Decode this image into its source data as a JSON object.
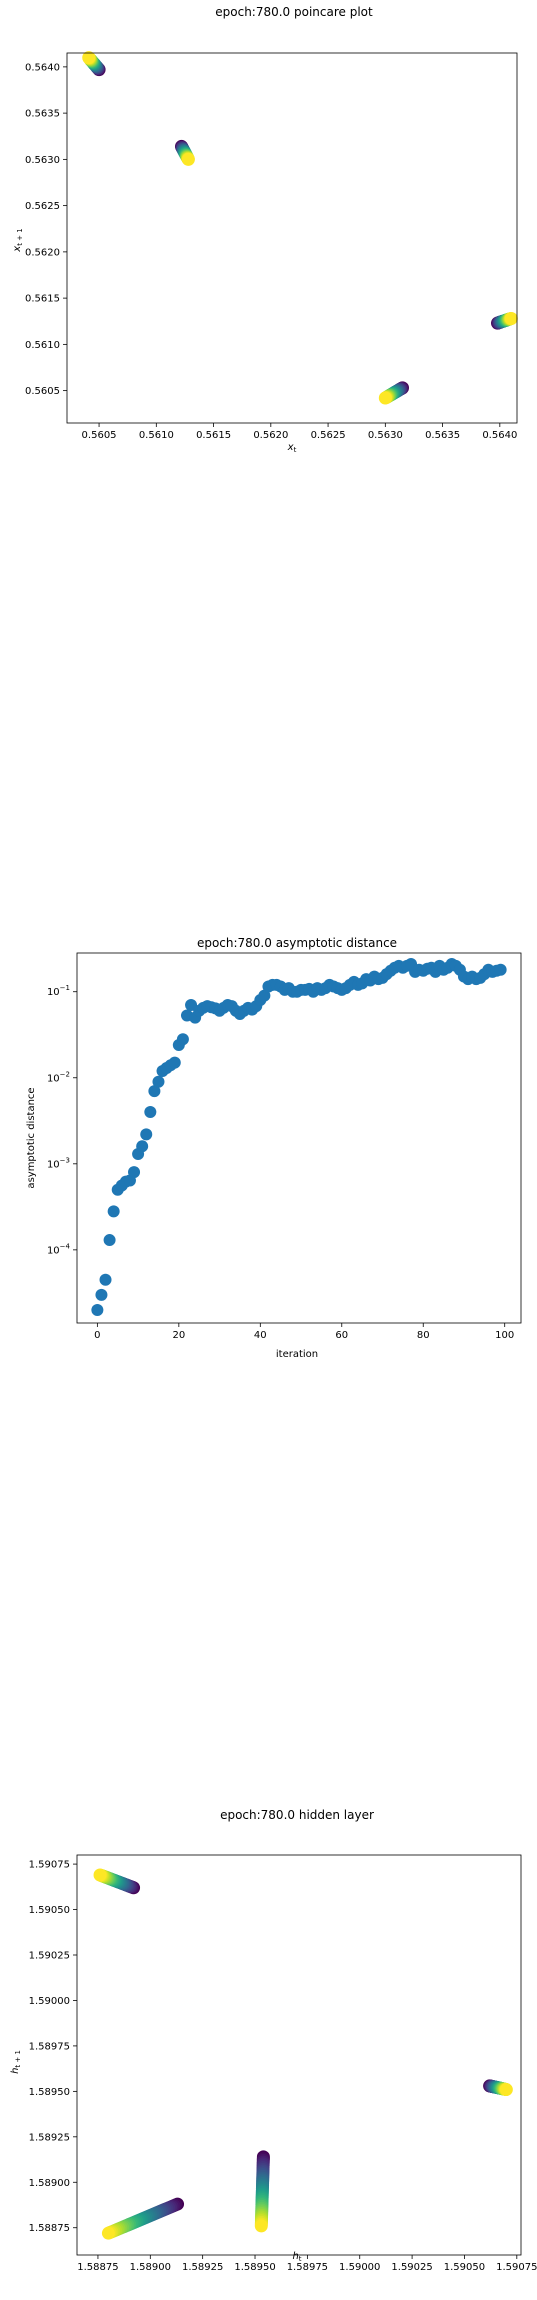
{
  "chart_data": [
    {
      "type": "scatter",
      "title": "epoch:780.0 poincare plot",
      "xlabel": "x_t",
      "ylabel": "x_{t+1}",
      "xlim": [
        0.56022,
        0.56415
      ],
      "ylim": [
        0.56015,
        0.56415
      ],
      "xticks": [
        "0.5605",
        "0.5610",
        "0.5615",
        "0.5620",
        "0.5625",
        "0.5630",
        "0.5635",
        "0.5640"
      ],
      "xtick_values": [
        0.5605,
        0.561,
        0.5615,
        0.562,
        0.5625,
        0.563,
        0.5635,
        0.564
      ],
      "yticks": [
        "0.5605",
        "0.5610",
        "0.5615",
        "0.5620",
        "0.5625",
        "0.5630",
        "0.5635",
        "0.5640"
      ],
      "ytick_values": [
        0.5605,
        0.561,
        0.5615,
        0.562,
        0.5625,
        0.563,
        0.5635,
        0.564
      ],
      "colormap": "viridis",
      "clusters": [
        {
          "start": [
            0.5605,
            0.56397
          ],
          "end": [
            0.56041,
            0.5641
          ]
        },
        {
          "start": [
            0.56122,
            0.56314
          ],
          "end": [
            0.56128,
            0.563
          ]
        },
        {
          "start": [
            0.56315,
            0.56053
          ],
          "end": [
            0.563,
            0.56042
          ]
        },
        {
          "start": [
            0.56398,
            0.56123
          ],
          "end": [
            0.5641,
            0.56128
          ]
        }
      ]
    },
    {
      "type": "scatter",
      "title": "epoch:780.0 asymptotic distance",
      "xlabel": "iteration",
      "ylabel": "asymptotic distance",
      "xlim": [
        -5,
        104
      ],
      "ylim_log10": [
        -4.85,
        -0.55
      ],
      "log_y": true,
      "xticks": [
        "0",
        "20",
        "40",
        "60",
        "80",
        "100"
      ],
      "xtick_values": [
        0,
        20,
        40,
        60,
        80,
        100
      ],
      "yticks": [
        "10",
        "10",
        "10",
        "10"
      ],
      "ytick_exponents": [
        "−4",
        "−3",
        "−2",
        "−1"
      ],
      "ytick_values": [
        -4,
        -3,
        -2,
        -1
      ],
      "color": "#1f77b4",
      "x": [
        0,
        1,
        2,
        3,
        4,
        5,
        6,
        7,
        8,
        9,
        10,
        11,
        12,
        13,
        14,
        15,
        16,
        17,
        18,
        19,
        20,
        21,
        22,
        23,
        24,
        25,
        26,
        27,
        28,
        29,
        30,
        31,
        32,
        33,
        34,
        35,
        36,
        37,
        38,
        39,
        40,
        41,
        42,
        43,
        44,
        45,
        46,
        47,
        48,
        49,
        50,
        51,
        52,
        53,
        54,
        55,
        56,
        57,
        58,
        59,
        60,
        61,
        62,
        63,
        64,
        65,
        66,
        67,
        68,
        69,
        70,
        71,
        72,
        73,
        74,
        75,
        76,
        77,
        78,
        79,
        80,
        81,
        82,
        83,
        84,
        85,
        86,
        87,
        88,
        89,
        90,
        91,
        92,
        93,
        94,
        95,
        96,
        97,
        98,
        99
      ],
      "y": [
        2e-05,
        3e-05,
        4.5e-05,
        0.00013,
        0.00028,
        0.0005,
        0.00056,
        0.00062,
        0.00064,
        0.0008,
        0.0013,
        0.0016,
        0.0022,
        0.004,
        0.007,
        0.009,
        0.012,
        0.013,
        0.014,
        0.015,
        0.024,
        0.028,
        0.053,
        0.07,
        0.05,
        0.06,
        0.065,
        0.068,
        0.066,
        0.064,
        0.06,
        0.065,
        0.07,
        0.068,
        0.06,
        0.055,
        0.06,
        0.065,
        0.062,
        0.068,
        0.08,
        0.09,
        0.115,
        0.12,
        0.12,
        0.115,
        0.105,
        0.11,
        0.1,
        0.1,
        0.105,
        0.105,
        0.108,
        0.1,
        0.11,
        0.105,
        0.11,
        0.12,
        0.115,
        0.11,
        0.105,
        0.11,
        0.12,
        0.13,
        0.12,
        0.125,
        0.14,
        0.135,
        0.15,
        0.14,
        0.145,
        0.16,
        0.175,
        0.19,
        0.2,
        0.19,
        0.2,
        0.21,
        0.17,
        0.18,
        0.175,
        0.185,
        0.19,
        0.17,
        0.2,
        0.18,
        0.19,
        0.21,
        0.2,
        0.18,
        0.15,
        0.14,
        0.15,
        0.14,
        0.145,
        0.16,
        0.18,
        0.17,
        0.175,
        0.18
      ]
    },
    {
      "type": "scatter",
      "title": "epoch:780.0 hidden layer",
      "xlabel": "h_t",
      "ylabel": "h_{t+1}",
      "xlim": [
        1.58865,
        1.59077
      ],
      "ylim": [
        1.5886,
        1.5908
      ],
      "xticks": [
        "1.58875",
        "1.58900",
        "1.58925",
        "1.58950",
        "1.58975",
        "1.59000",
        "1.59025",
        "1.59050",
        "1.59075"
      ],
      "xtick_values": [
        1.58875,
        1.589,
        1.58925,
        1.5895,
        1.58975,
        1.59,
        1.59025,
        1.5905,
        1.59075
      ],
      "yticks": [
        "1.58875",
        "1.58900",
        "1.58925",
        "1.58950",
        "1.58975",
        "1.59000",
        "1.59025",
        "1.59050",
        "1.59075"
      ],
      "ytick_values": [
        1.58875,
        1.589,
        1.58925,
        1.5895,
        1.58975,
        1.59,
        1.59025,
        1.5905,
        1.59075
      ],
      "colormap": "viridis",
      "clusters": [
        {
          "start": [
            1.58913,
            1.58888
          ],
          "end": [
            1.5888,
            1.58872
          ]
        },
        {
          "start": [
            1.58954,
            1.58914
          ],
          "end": [
            1.58953,
            1.58876
          ]
        },
        {
          "start": [
            1.59062,
            1.58953
          ],
          "end": [
            1.5907,
            1.58951
          ]
        },
        {
          "start": [
            1.58892,
            1.59062
          ],
          "end": [
            1.58876,
            1.59069
          ]
        }
      ]
    }
  ]
}
